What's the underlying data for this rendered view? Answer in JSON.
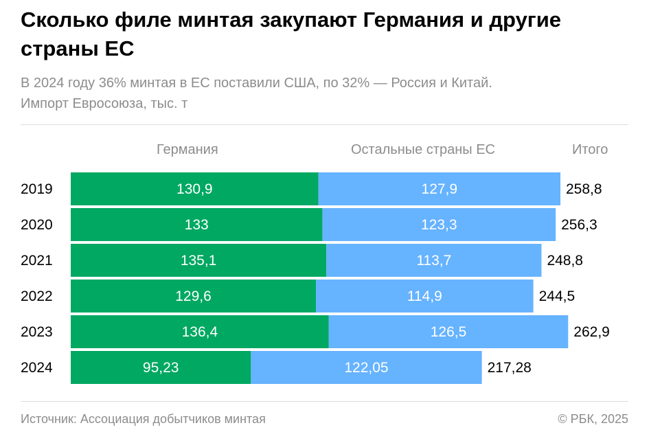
{
  "title": "Сколько филе минтая закупают Германия и другие страны ЕС",
  "subtitle_line1": "В 2024 году 36% минтая в ЕС поставили США, по 32% — Россия и Китай.",
  "subtitle_line2": "Импорт Евросоюза, тыс. т",
  "source": "Источник: Ассоциация добытчиков минтая",
  "copyright": "© РБК, 2025",
  "chart_data": {
    "type": "bar",
    "orientation": "horizontal",
    "stacked": true,
    "categories": [
      "2019",
      "2020",
      "2021",
      "2022",
      "2023",
      "2024"
    ],
    "series": [
      {
        "name": "Германия",
        "color": "#00a862",
        "values": [
          130.9,
          133,
          135.1,
          129.6,
          136.4,
          95.23
        ],
        "labels": [
          "130,9",
          "133",
          "135,1",
          "129,6",
          "136,4",
          "95,23"
        ]
      },
      {
        "name": "Остальные страны ЕС",
        "color": "#66b3ff",
        "values": [
          127.9,
          123.3,
          113.7,
          114.9,
          126.5,
          122.05
        ],
        "labels": [
          "127,9",
          "123,3",
          "113,7",
          "114,9",
          "126,5",
          "122,05"
        ]
      }
    ],
    "totals_header": "Итого",
    "totals": [
      "258,8",
      "256,3",
      "248,8",
      "244,5",
      "262,9",
      "217,28"
    ],
    "grid": false
  }
}
